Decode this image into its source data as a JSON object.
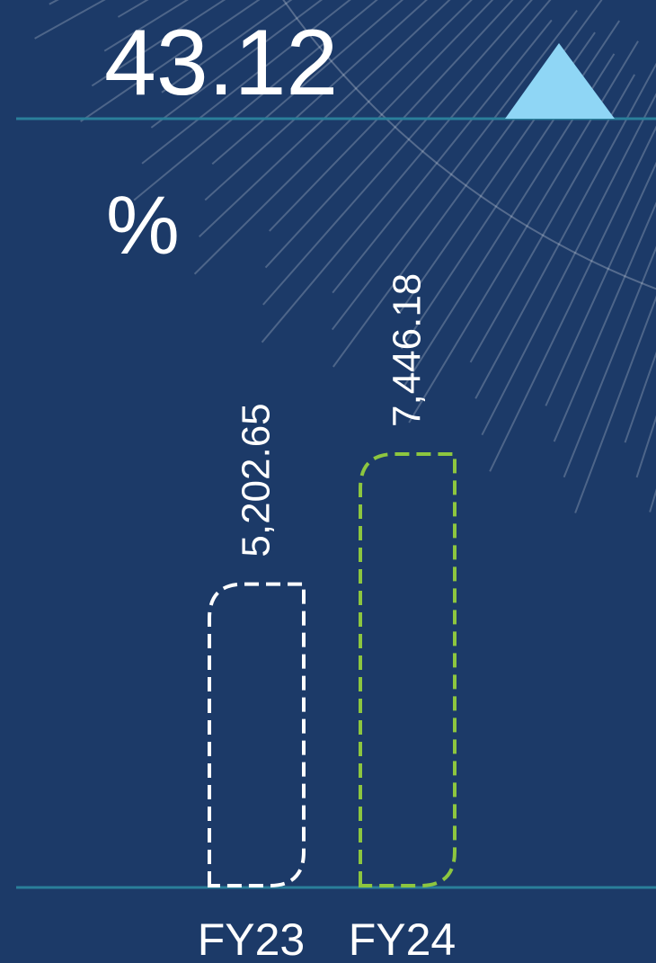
{
  "kpi": {
    "value": "43.12",
    "unit": "%"
  },
  "chart_data": {
    "type": "bar",
    "categories": [
      "FY23",
      "FY24"
    ],
    "values": [
      5202.65,
      7446.18
    ],
    "value_labels": [
      "5,202.65",
      "7,446.18"
    ],
    "colors": [
      "#ffffff",
      "#8dc63f"
    ]
  }
}
